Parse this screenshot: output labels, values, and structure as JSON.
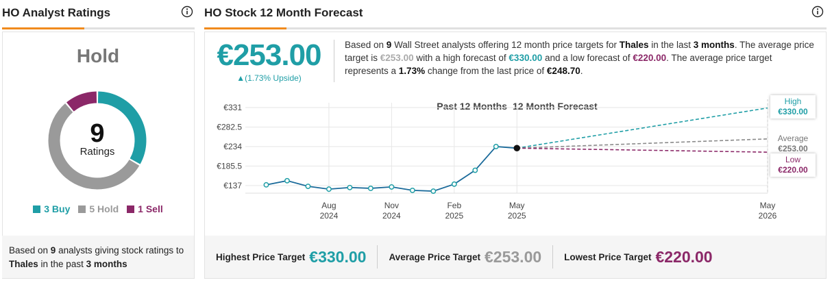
{
  "ratings_panel": {
    "title": "HO Analyst Ratings",
    "consensus": "Hold",
    "footer_parts": [
      "Based on ",
      "9",
      " analysts giving stock ratings to ",
      "Thales",
      " in the past ",
      "3 months"
    ]
  },
  "forecast_panel": {
    "title": "HO Stock 12 Month Forecast",
    "price": "€253.00",
    "upside": "▲(1.73% Upside)",
    "description_parts": [
      "Based on ",
      "9",
      " Wall Street analysts offering 12 month price targets for ",
      "Thales",
      " in the last ",
      "3 months",
      ". The average price target is ",
      "€253.00",
      " with a high forecast of ",
      "€330.00",
      " and a low forecast of ",
      "€220.00",
      ". The average price target represents a ",
      "1.73%",
      " change from the last price of ",
      "€248.70",
      "."
    ],
    "targets": [
      {
        "label": "Highest Price Target",
        "value": "€330.00",
        "color": "#1f9ea6"
      },
      {
        "label": "Average Price Target",
        "value": "€253.00",
        "color": "#9a9a9a"
      },
      {
        "label": "Lowest Price Target",
        "value": "€220.00",
        "color": "#8b2868"
      }
    ]
  },
  "chart_data": [
    {
      "type": "pie",
      "total": 9,
      "center_label": "Ratings",
      "values": [
        3,
        5,
        1
      ],
      "value_labels": [
        "3 Buy",
        "5 Hold",
        "1 Sell"
      ],
      "colors": [
        "#1f9ea6",
        "#9a9a9a",
        "#8b2868"
      ]
    },
    {
      "type": "line",
      "title_left": "Past 12 Months",
      "title_right": "12 Month Forecast",
      "x": [
        "2024-05",
        "2024-06",
        "2024-07",
        "2024-08",
        "2024-09",
        "2024-10",
        "2024-11",
        "2024-12",
        "2025-01",
        "2025-02",
        "2025-03",
        "2025-04",
        "2025-05"
      ],
      "history": {
        "color": "#1a6a9a",
        "values": [
          138.7,
          149,
          135,
          128,
          132,
          130,
          133.5,
          125,
          123,
          140.5,
          175,
          234,
          230
        ]
      },
      "forecast_x": "2026-05",
      "forecast": [
        {
          "name": "High",
          "color": "#1f9ea6",
          "values": [
            330
          ],
          "value_labels": [
            "€330.00"
          ]
        },
        {
          "name": "Average",
          "color": "#8a8a8a",
          "values": [
            253
          ],
          "value_labels": [
            "€253.00"
          ]
        },
        {
          "name": "Low",
          "color": "#8b2868",
          "values": [
            220
          ],
          "value_labels": [
            "€220.00"
          ]
        }
      ],
      "xlim": [
        "2024-04",
        "2026-05"
      ],
      "xticks": [
        {
          "value": "2024-08",
          "label": "Aug 2024"
        },
        {
          "value": "2024-11",
          "label": "Nov 2024"
        },
        {
          "value": "2025-02",
          "label": "Feb 2025"
        },
        {
          "value": "2025-05",
          "label": "May 2025"
        },
        {
          "value": "2026-05",
          "label": "May 2026"
        }
      ],
      "ylim": [
        118,
        343
      ],
      "yticks": [
        {
          "value": 137,
          "label": "€137"
        },
        {
          "value": 185.5,
          "label": "€185.5"
        },
        {
          "value": 234,
          "label": "€234"
        },
        {
          "value": 282.5,
          "label": "€282.5"
        },
        {
          "value": 331,
          "label": "€331"
        }
      ],
      "grid": true
    }
  ]
}
